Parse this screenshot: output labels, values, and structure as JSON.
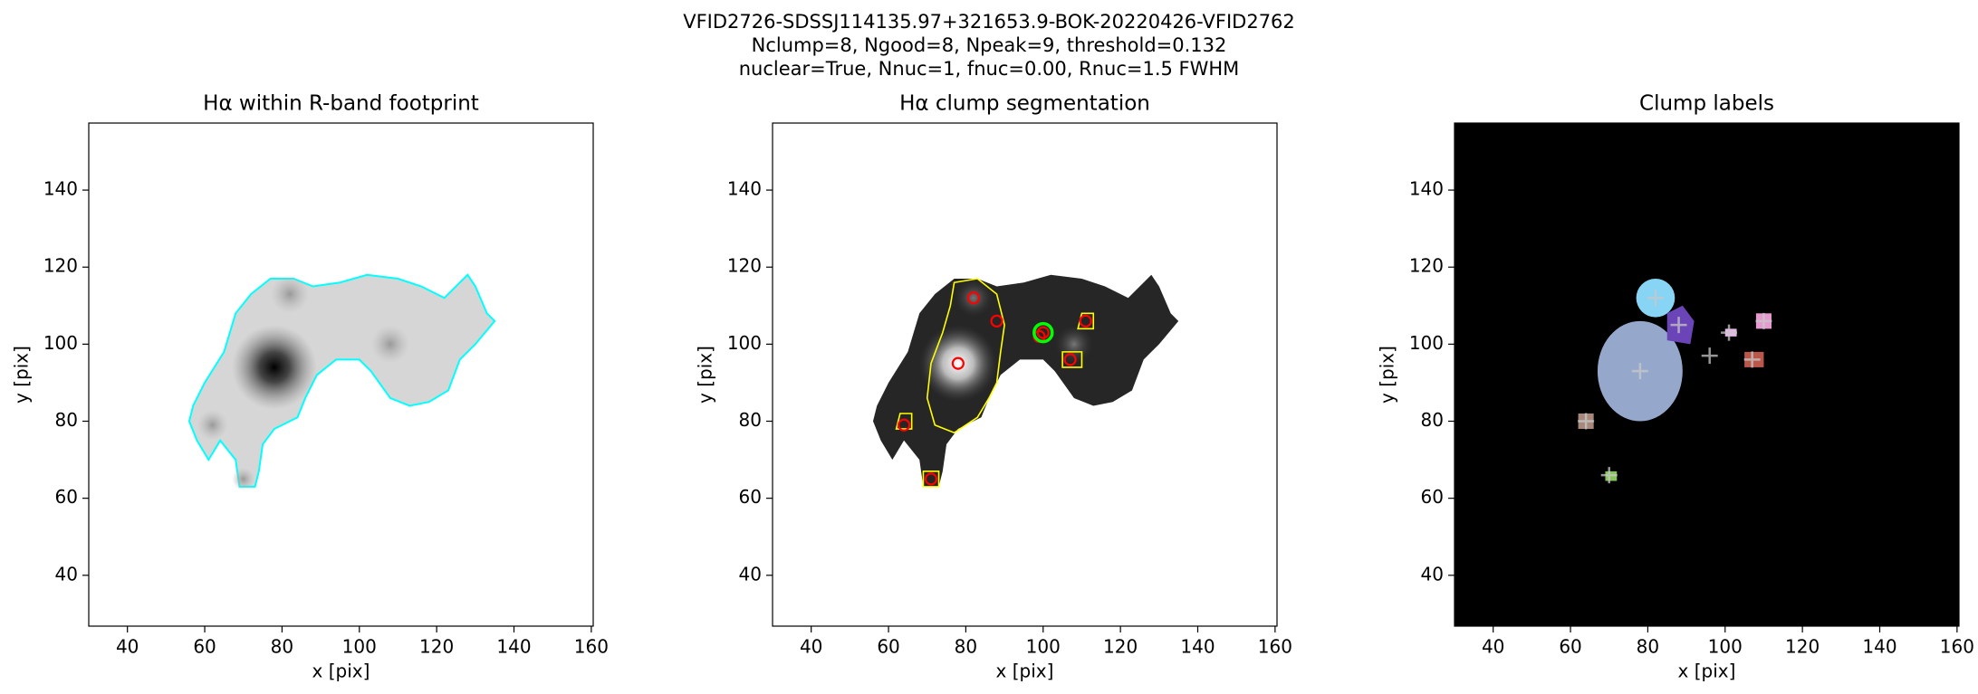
{
  "title_lines": [
    "VFID2726-SDSSJ114135.97+321653.9-BOK-20220426-VFID2762",
    "Nclump=8, Ngood=8, Npeak=9, threshold=0.132",
    "nuclear=True, Nnuc=1, fnuc=0.00, Rnuc=1.5 FWHM"
  ],
  "chart_data": [
    {
      "type": "image",
      "title": "Hα within R-band footprint",
      "xlabel": "x [pix]",
      "ylabel": "y [pix]",
      "xlim": [
        30,
        160.5
      ],
      "ylim": [
        26.8,
        157.4
      ],
      "xticks": [
        40,
        60,
        80,
        100,
        120,
        140,
        160
      ],
      "yticks": [
        40,
        60,
        80,
        100,
        120,
        140
      ]
    },
    {
      "type": "image",
      "title": "Hα clump segmentation",
      "xlabel": "x [pix]",
      "ylabel": "y [pix]",
      "xlim": [
        30,
        160.5
      ],
      "ylim": [
        26.8,
        157.4
      ],
      "xticks": [
        40,
        60,
        80,
        100,
        120,
        140,
        160
      ],
      "yticks": [
        40,
        60,
        80,
        100,
        120,
        140
      ],
      "peaks": {
        "x": [
          82,
          88,
          78,
          100,
          111,
          107,
          64,
          71,
          99
        ],
        "y": [
          112,
          106,
          95,
          103,
          106,
          96,
          79,
          65,
          102
        ],
        "color": "#ff0000"
      },
      "nucleus": {
        "x": [
          100
        ],
        "y": [
          103
        ],
        "color": "#00ff00"
      }
    },
    {
      "type": "image",
      "title": "Clump labels",
      "xlabel": "x [pix]",
      "ylabel": "y [pix]",
      "xlim": [
        30,
        160.5
      ],
      "ylim": [
        26.8,
        157.4
      ],
      "xticks": [
        40,
        60,
        80,
        100,
        120,
        140,
        160
      ],
      "yticks": [
        40,
        60,
        80,
        100,
        120,
        140
      ],
      "centroids": {
        "x": [
          82,
          78,
          88,
          101,
          110,
          107,
          96,
          64,
          70
        ],
        "y": [
          112,
          93,
          105,
          103,
          106,
          96,
          97,
          80,
          66
        ],
        "color": "#c8c8c8"
      }
    }
  ]
}
